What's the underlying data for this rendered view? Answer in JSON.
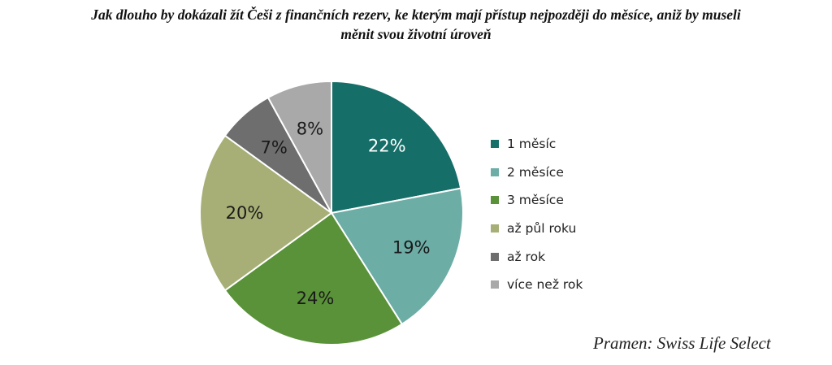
{
  "title_line1": "Jak dlouho by dokázali žít Češi z finančních rezerv, ke kterým mají přístup nejpozději do měsíce, aniž by museli",
  "title_line2": "měnit svou životní úroveň",
  "source": "Pramen: Swiss Life Select",
  "chart_data": {
    "type": "pie",
    "title": "Jak dlouho by dokázali žít Češi z finančních rezerv, ke kterým mají přístup nejpozději do měsíce, aniž by museli měnit svou životní úroveň",
    "legend_position": "right",
    "slices": [
      {
        "label": "1 měsíc",
        "value": 22,
        "display": "22%",
        "color": "#156E68"
      },
      {
        "label": "2 měsíce",
        "value": 19,
        "display": "19%",
        "color": "#6CADA6"
      },
      {
        "label": "3 měsíce",
        "value": 24,
        "display": "24%",
        "color": "#5A9239"
      },
      {
        "label": "až půl roku",
        "value": 20,
        "display": "20%",
        "color": "#A7AF76"
      },
      {
        "label": "až rok",
        "value": 7,
        "display": "7%",
        "color": "#6E6E6E"
      },
      {
        "label": "více než rok",
        "value": 8,
        "display": "8%",
        "color": "#A9A9A9"
      }
    ]
  }
}
